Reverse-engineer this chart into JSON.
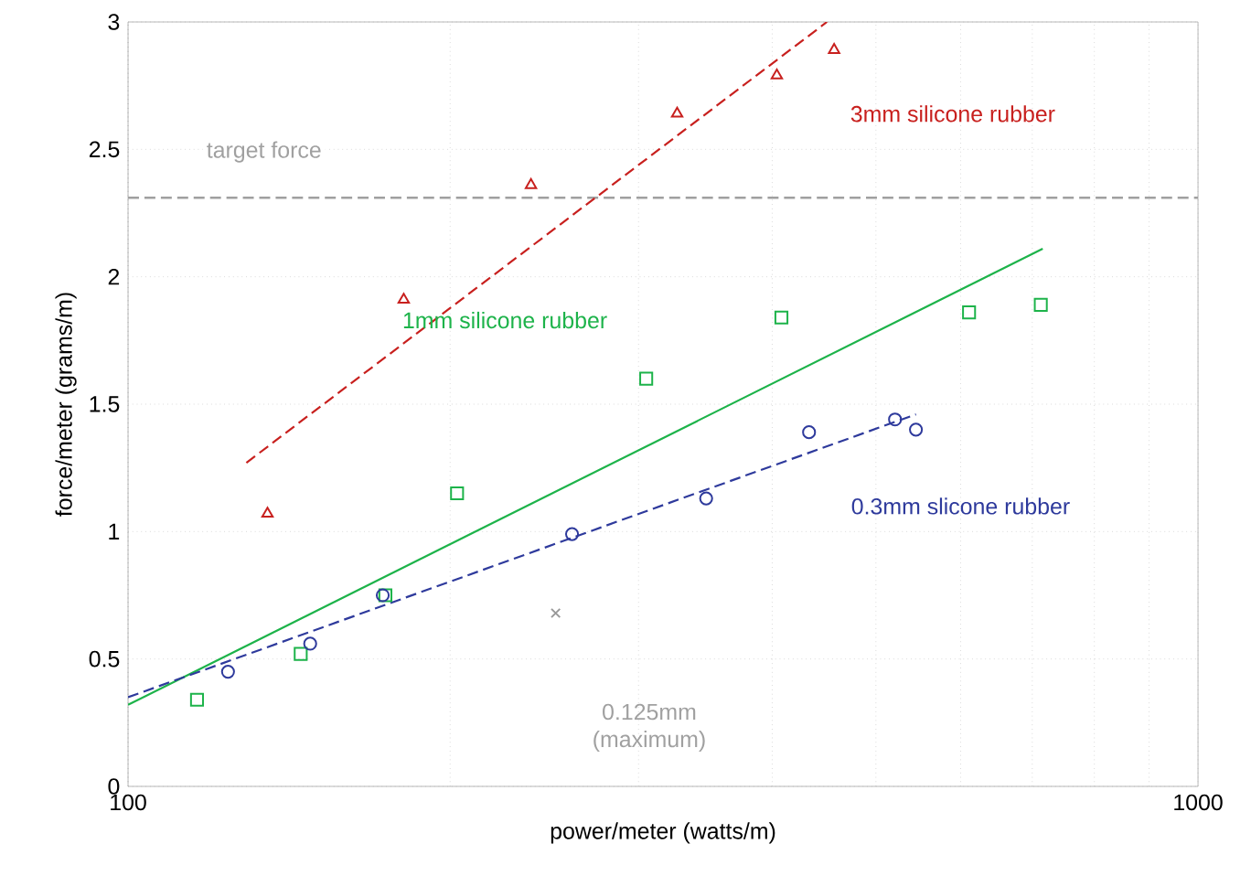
{
  "chart_data": {
    "type": "scatter",
    "xlabel": "power/meter (watts/m)",
    "ylabel": "force/meter (grams/m)",
    "log": "x",
    "grid": true,
    "xlim": [
      100,
      1000
    ],
    "xticks": [
      100,
      1000
    ],
    "ylim": [
      0,
      3
    ],
    "yticks": [
      0,
      0.5,
      1,
      1.5,
      2,
      2.5,
      3
    ],
    "series": [
      {
        "name": "3mm silicone rubber",
        "color": "#c8201e",
        "marker": "triangle",
        "x": [
          135,
          181,
          238,
          326,
          404,
          457
        ],
        "values": [
          1.07,
          1.91,
          2.36,
          2.64,
          2.79,
          2.89
        ]
      },
      {
        "type": "line",
        "color": "#c8201e",
        "line_style": "dashed",
        "x": [
          129,
          450
        ],
        "values": [
          1.27,
          3.0
        ]
      },
      {
        "name": "1mm silicone rubber",
        "color": "#1db34a",
        "marker": "square",
        "x": [
          116,
          145,
          174,
          203,
          305,
          408,
          611,
          713
        ],
        "values": [
          0.34,
          0.52,
          0.75,
          1.15,
          1.6,
          1.84,
          1.86,
          1.89
        ]
      },
      {
        "type": "line",
        "color": "#1db34a",
        "line_style": "solid",
        "x": [
          100,
          716
        ],
        "values": [
          0.32,
          2.11
        ]
      },
      {
        "name": "0.3mm slicone rubber",
        "color": "#2e3a9c",
        "marker": "circle",
        "x": [
          124,
          148,
          173,
          260,
          347,
          433,
          521,
          545
        ],
        "values": [
          0.45,
          0.56,
          0.75,
          0.99,
          1.13,
          1.39,
          1.44,
          1.4
        ]
      },
      {
        "type": "line",
        "color": "#2e3a9c",
        "line_style": "dashed",
        "x": [
          100,
          545
        ],
        "values": [
          0.35,
          1.46
        ]
      },
      {
        "color": "#999999",
        "marker": "cross",
        "x": [
          251
        ],
        "values": [
          0.68
        ]
      }
    ],
    "ref_lines": [
      {
        "axis": "y",
        "value": 2.31,
        "label": "target force",
        "color": "#a0a0a0",
        "line_style": "dashed"
      }
    ],
    "annotations": [
      "0.125mm (maximum)"
    ]
  }
}
